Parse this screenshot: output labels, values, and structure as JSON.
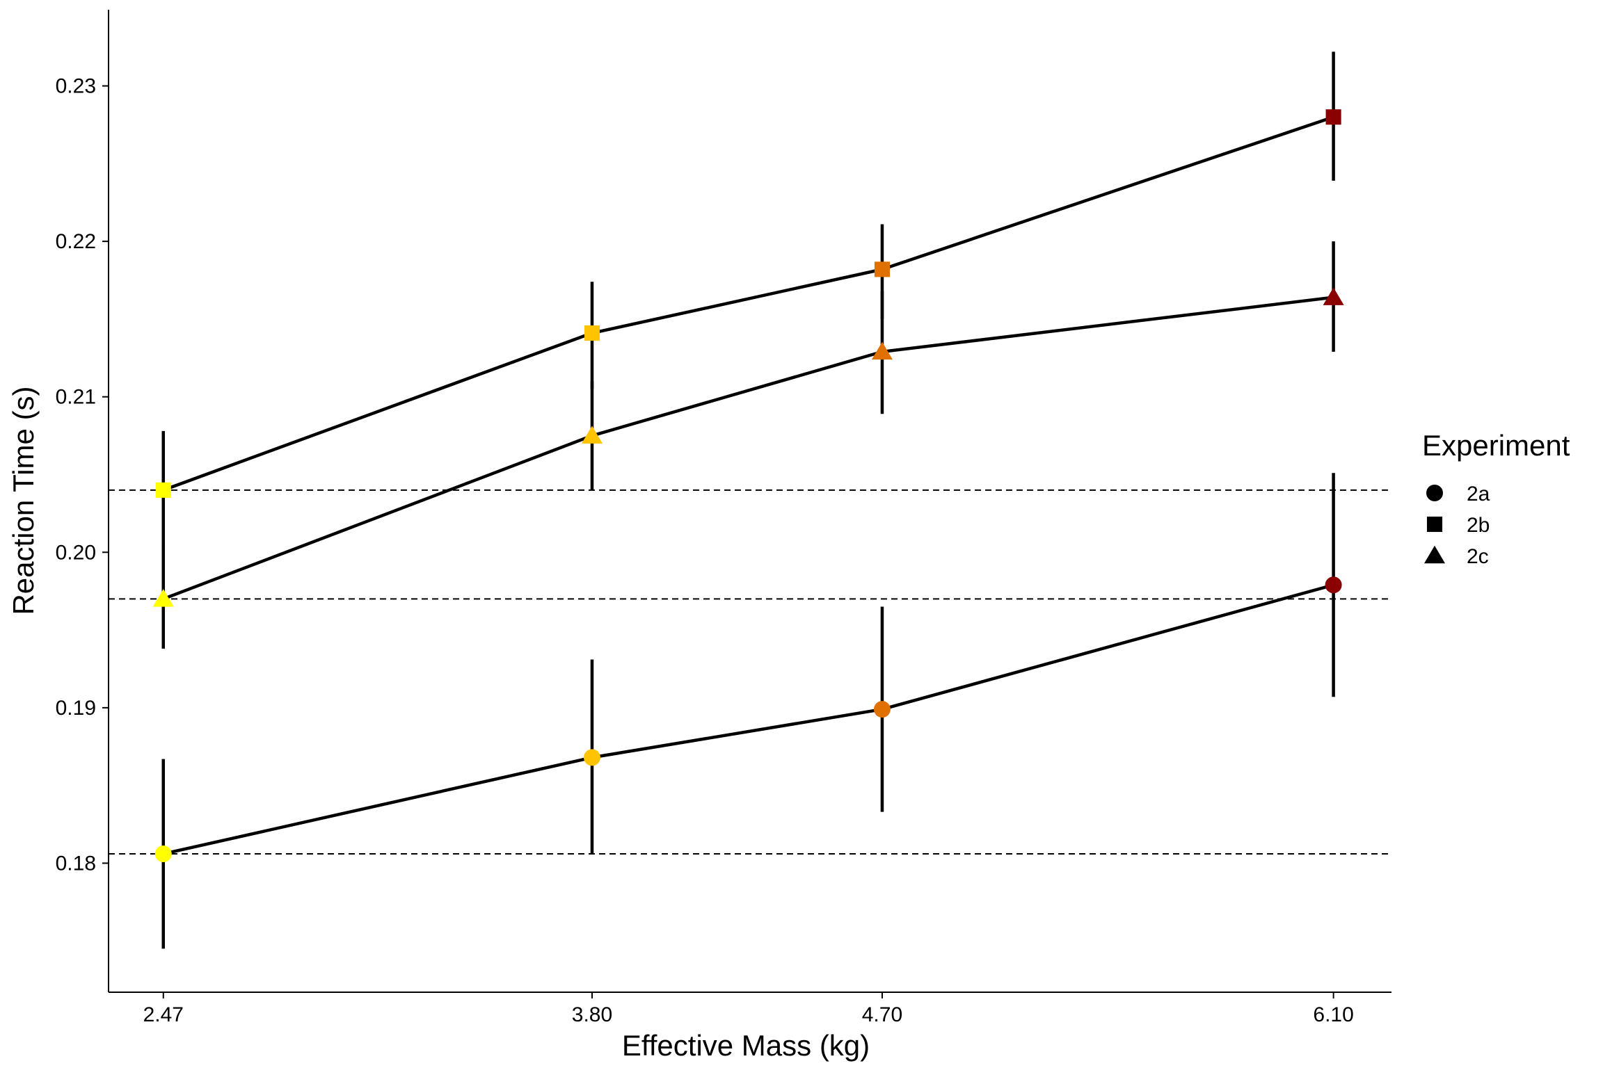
{
  "chart_data": {
    "type": "line",
    "title": "",
    "xlabel": "Effective Mass (kg)",
    "ylabel": "Reaction Time (s)",
    "x": [
      2.47,
      3.8,
      4.7,
      6.1
    ],
    "x_tick_labels": [
      "2.47",
      "3.80",
      "4.70",
      "6.10"
    ],
    "xlim": [
      2.3,
      6.28
    ],
    "y_ticks": [
      0.18,
      0.19,
      0.2,
      0.21,
      0.22,
      0.23
    ],
    "y_tick_labels": [
      "0.18",
      "0.19",
      "0.20",
      "0.21",
      "0.22",
      "0.23"
    ],
    "ylim": [
      0.1717,
      0.2349
    ],
    "grid": false,
    "point_colors": [
      "#FFFF00",
      "#FFC300",
      "#E07000",
      "#8B0000"
    ],
    "line_color": "#000000",
    "series": [
      {
        "name": "2a",
        "shape": "circle",
        "values": [
          0.1806,
          0.1868,
          0.1899,
          0.1979
        ],
        "err_low": [
          0.1745,
          0.1806,
          0.1833,
          0.1907
        ],
        "err_high": [
          0.1867,
          0.1931,
          0.1965,
          0.2051
        ]
      },
      {
        "name": "2b",
        "shape": "square",
        "values": [
          0.204,
          0.2141,
          0.2182,
          0.228
        ],
        "err_low": [
          0.2002,
          0.2105,
          0.215,
          0.2239
        ],
        "err_high": [
          0.2078,
          0.2174,
          0.2211,
          0.2322
        ]
      },
      {
        "name": "2c",
        "shape": "triangle",
        "values": [
          0.197,
          0.2075,
          0.2129,
          0.2164
        ],
        "err_low": [
          0.1938,
          0.204,
          0.2089,
          0.2129
        ],
        "err_high": [
          0.2003,
          0.211,
          0.2168,
          0.22
        ]
      }
    ],
    "reference_lines": [
      0.204,
      0.197,
      0.1806
    ],
    "legend": {
      "title": "Experiment",
      "position": "right",
      "entries": [
        "2a",
        "2b",
        "2c"
      ]
    }
  }
}
